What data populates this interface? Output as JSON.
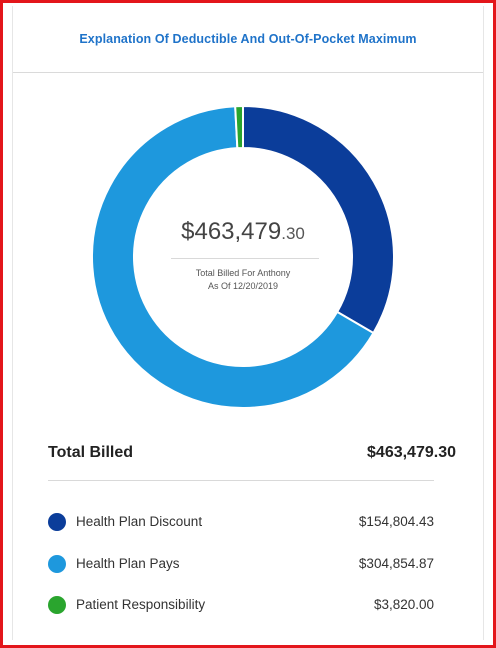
{
  "header": {
    "title": "Explanation Of Deductible And Out-Of-Pocket Maximum"
  },
  "chart_data": {
    "type": "pie",
    "style": "donut",
    "categories": [
      "Health Plan Discount",
      "Health Plan Pays",
      "Patient Responsibility"
    ],
    "values": [
      154804.43,
      304854.87,
      3820.0
    ],
    "colors": [
      "#0b3d9a",
      "#1e98dd",
      "#2aa52e"
    ],
    "center": {
      "amount_main": "$463,479",
      "amount_cents": ".30",
      "caption_line1": "Total Billed For Anthony",
      "caption_line2": "As Of 12/20/2019"
    }
  },
  "summary": {
    "total_label": "Total Billed",
    "total_value": "$463,479.30"
  },
  "legend": [
    {
      "label": "Health Plan Discount",
      "value": "$154,804.43",
      "color": "#0b3d9a"
    },
    {
      "label": "Health Plan Pays",
      "value": "$304,854.87",
      "color": "#1e98dd"
    },
    {
      "label": "Patient Responsibility",
      "value": "$3,820.00",
      "color": "#2aa52e"
    }
  ]
}
